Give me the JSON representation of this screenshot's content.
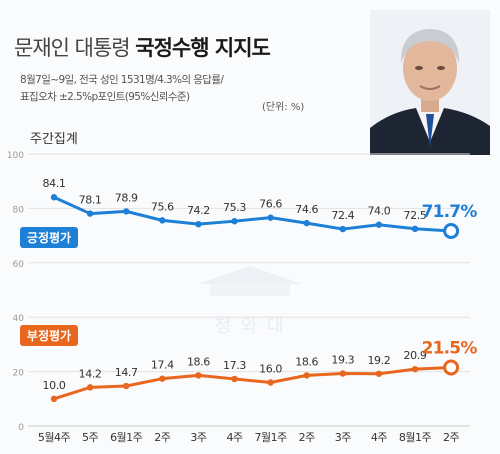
{
  "header": {
    "title_light": "문재인 대통령",
    "title_bold": "국정수행 지지도",
    "note_line1": "8월7일~9일, 전국 성인 1531명/4.3%의 응답률/",
    "note_line2": "표집오차 ±2.5%p포인트(95%신뢰수준)",
    "unit": "(단위: %)"
  },
  "chart_data": {
    "type": "line",
    "title": "주간집계",
    "categories": [
      "5월4주",
      "5주",
      "6월1주",
      "2주",
      "3주",
      "4주",
      "7월1주",
      "2주",
      "3주",
      "4주",
      "8월1주",
      "2주"
    ],
    "ylim": [
      0,
      100
    ],
    "yticks": [
      0,
      20,
      40,
      60,
      80,
      100
    ],
    "grid": true,
    "series": [
      {
        "name": "긍정평가",
        "color": "#1e7fd6",
        "values": [
          84.1,
          78.1,
          78.9,
          75.6,
          74.2,
          75.3,
          76.6,
          74.6,
          72.4,
          74.0,
          72.5,
          71.7
        ],
        "labels": [
          "84.1",
          "78.1",
          "78.9",
          "75.6",
          "74.2",
          "75.3",
          "76.6",
          "74.6",
          "72.4",
          "74.0",
          "72.5",
          "71.7%"
        ]
      },
      {
        "name": "부정평가",
        "color": "#e8661e",
        "values": [
          10.0,
          14.2,
          14.7,
          17.4,
          18.6,
          17.3,
          16.0,
          18.6,
          19.3,
          19.2,
          20.9,
          21.5
        ],
        "labels": [
          "10.0",
          "14.2",
          "14.7",
          "17.4",
          "18.6",
          "17.3",
          "16.0",
          "18.6",
          "19.3",
          "19.2",
          "20.9",
          "21.5%"
        ]
      }
    ]
  },
  "watermark": {
    "text": "청 와 대"
  }
}
